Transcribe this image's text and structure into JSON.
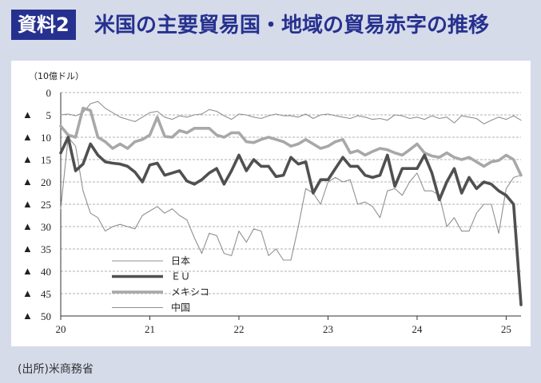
{
  "header": {
    "tag": "資料2",
    "title": "米国の主要貿易国・地域の貿易赤字の推移"
  },
  "source": "(出所)米商務省",
  "colors": {
    "accent": "#26318f",
    "background": "#d6dbea",
    "japan": "#909090",
    "eu": "#505050",
    "mexico": "#a8a8a8",
    "china": "#909090"
  },
  "chart_data": {
    "type": "line",
    "unit_label": "（10億ドル）",
    "ylim": [
      -50,
      0
    ],
    "y_ticks": [
      {
        "value": 0,
        "label": "0",
        "marker": ""
      },
      {
        "value": -5,
        "label": "5",
        "marker": "▲"
      },
      {
        "value": -10,
        "label": "10",
        "marker": "▲"
      },
      {
        "value": -15,
        "label": "15",
        "marker": "▲"
      },
      {
        "value": -20,
        "label": "20",
        "marker": "▲"
      },
      {
        "value": -25,
        "label": "25",
        "marker": "▲"
      },
      {
        "value": -30,
        "label": "30",
        "marker": "▲"
      },
      {
        "value": -35,
        "label": "35",
        "marker": "▲"
      },
      {
        "value": -40,
        "label": "40",
        "marker": "▲"
      },
      {
        "value": -45,
        "label": "45",
        "marker": "▲"
      },
      {
        "value": -50,
        "label": "50",
        "marker": "▲"
      }
    ],
    "x_ticks": [
      {
        "value": 0,
        "label": "20"
      },
      {
        "value": 12,
        "label": "21"
      },
      {
        "value": 24,
        "label": "22"
      },
      {
        "value": 36,
        "label": "23"
      },
      {
        "value": 48,
        "label": "24"
      },
      {
        "value": 60,
        "label": "25"
      }
    ],
    "xlim": [
      0,
      62
    ],
    "grid": true,
    "legend_position": "bottom-left",
    "series": [
      {
        "name": "日本",
        "x": [
          0,
          1,
          2,
          3,
          4,
          5,
          6,
          7,
          8,
          9,
          10,
          11,
          12,
          13,
          14,
          15,
          16,
          17,
          18,
          19,
          20,
          21,
          22,
          23,
          24,
          25,
          26,
          27,
          28,
          29,
          30,
          31,
          32,
          33,
          34,
          35,
          36,
          37,
          38,
          39,
          40,
          41,
          42,
          43,
          44,
          45,
          46,
          47,
          48,
          49,
          50,
          51,
          52,
          53,
          54,
          55,
          56,
          57,
          58,
          59,
          60,
          61,
          62
        ],
        "values": [
          -5,
          -4.8,
          -5.2,
          -4.5,
          -2.5,
          -2,
          -3.5,
          -4.5,
          -5.5,
          -6,
          -6.5,
          -5.5,
          -4.5,
          -4.2,
          -5.5,
          -6,
          -5.2,
          -5.5,
          -5,
          -4.8,
          -3.8,
          -4.2,
          -5.2,
          -6,
          -4.8,
          -5,
          -5.5,
          -5.8,
          -5.2,
          -4.8,
          -5.2,
          -5.2,
          -5.5,
          -4.8,
          -5.8,
          -5,
          -4.8,
          -5.2,
          -5.5,
          -5.8,
          -5.2,
          -5.5,
          -6,
          -5.8,
          -6.2,
          -5,
          -5.2,
          -5.8,
          -5.5,
          -6,
          -5.2,
          -5.8,
          -5.5,
          -6.8,
          -5.2,
          -5.5,
          -5.8,
          -7,
          -6.2,
          -5.5,
          -6,
          -5.2,
          -6.2
        ]
      },
      {
        "name": "ＥＵ",
        "x": [
          0,
          1,
          2,
          3,
          4,
          5,
          6,
          7,
          8,
          9,
          10,
          11,
          12,
          13,
          14,
          15,
          16,
          17,
          18,
          19,
          20,
          21,
          22,
          23,
          24,
          25,
          26,
          27,
          28,
          29,
          30,
          31,
          32,
          33,
          34,
          35,
          36,
          37,
          38,
          39,
          40,
          41,
          42,
          43,
          44,
          45,
          46,
          47,
          48,
          49,
          50,
          51,
          52,
          53,
          54,
          55,
          56,
          57,
          58,
          59,
          60,
          61,
          62
        ],
        "values": [
          -13.5,
          -10,
          -17.5,
          -16,
          -11.5,
          -14,
          -15.5,
          -15.8,
          -16,
          -16.5,
          -17.8,
          -20,
          -16.2,
          -15.8,
          -18.5,
          -18,
          -17.5,
          -19.8,
          -20.5,
          -19.5,
          -18,
          -17,
          -20.5,
          -17.5,
          -14,
          -17.5,
          -15,
          -16.5,
          -16.5,
          -18.8,
          -18.5,
          -14.5,
          -16,
          -15.5,
          -22.5,
          -19.5,
          -19.5,
          -17,
          -14.5,
          -16.5,
          -16.5,
          -18.5,
          -19,
          -18.5,
          -14,
          -21,
          -17,
          -17,
          -17,
          -14,
          -18,
          -24,
          -20,
          -17,
          -22.5,
          -19,
          -21.5,
          -20,
          -20.5,
          -22,
          -23,
          -25,
          -47.5
        ]
      },
      {
        "name": "メキシコ",
        "x": [
          0,
          1,
          2,
          3,
          4,
          5,
          6,
          7,
          8,
          9,
          10,
          11,
          12,
          13,
          14,
          15,
          16,
          17,
          18,
          19,
          20,
          21,
          22,
          23,
          24,
          25,
          26,
          27,
          28,
          29,
          30,
          31,
          32,
          33,
          34,
          35,
          36,
          37,
          38,
          39,
          40,
          41,
          42,
          43,
          44,
          45,
          46,
          47,
          48,
          49,
          50,
          51,
          52,
          53,
          54,
          55,
          56,
          57,
          58,
          59,
          60,
          61,
          62
        ],
        "values": [
          -7.5,
          -9.5,
          -10,
          -3.5,
          -4,
          -10,
          -11,
          -12.5,
          -11.5,
          -12.5,
          -11,
          -10.5,
          -9.5,
          -5.5,
          -9.8,
          -10,
          -8.5,
          -9,
          -8,
          -8,
          -8,
          -9.5,
          -10,
          -9,
          -9,
          -11,
          -11.2,
          -10.5,
          -10,
          -10.5,
          -11,
          -12,
          -11.5,
          -10.5,
          -11.5,
          -12.5,
          -12,
          -11,
          -10.5,
          -13.5,
          -13,
          -14,
          -13.2,
          -12.5,
          -12.8,
          -13.5,
          -14,
          -12.8,
          -11.5,
          -13.5,
          -14.2,
          -14.5,
          -13.5,
          -14.5,
          -15,
          -14.5,
          -15.5,
          -16.5,
          -15.5,
          -15.2,
          -14,
          -15,
          -18.5
        ]
      },
      {
        "name": "中国",
        "x": [
          0,
          1,
          2,
          3,
          4,
          5,
          6,
          7,
          8,
          9,
          10,
          11,
          12,
          13,
          14,
          15,
          16,
          17,
          18,
          19,
          20,
          21,
          22,
          23,
          24,
          25,
          26,
          27,
          28,
          29,
          30,
          31,
          32,
          33,
          34,
          35,
          36,
          37,
          38,
          39,
          40,
          41,
          42,
          43,
          44,
          45,
          46,
          47,
          48,
          49,
          50,
          51,
          52,
          53,
          54,
          55,
          56,
          57,
          58,
          59,
          60,
          61,
          62
        ],
        "values": [
          -26,
          -10,
          -12,
          -22,
          -27,
          -28,
          -31,
          -30,
          -29.5,
          -30,
          -30.5,
          -27.5,
          -26.5,
          -25.5,
          -27,
          -26,
          -27.5,
          -28.5,
          -32.5,
          -36,
          -31.5,
          -32,
          -36,
          -36.5,
          -31,
          -33.5,
          -30.5,
          -31,
          -36.5,
          -35,
          -37.5,
          -37.5,
          -30,
          -21.5,
          -22.5,
          -25,
          -20,
          -19,
          -20,
          -19.5,
          -25,
          -24.5,
          -25.5,
          -28,
          -22,
          -21.5,
          -23,
          -20,
          -18,
          -22,
          -22,
          -23,
          -30,
          -28,
          -31,
          -31,
          -27,
          -25,
          -25,
          -31.5,
          -21.5,
          -19,
          -18.5
        ]
      }
    ]
  }
}
